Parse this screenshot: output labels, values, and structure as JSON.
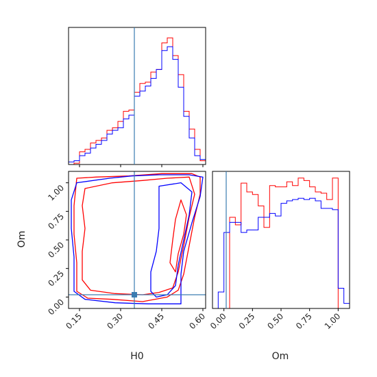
{
  "chart_data": {
    "type": "corner",
    "parameters": [
      "H0",
      "Om"
    ],
    "truth": {
      "H0": 0.35,
      "Om": 0.02
    },
    "colors": {
      "run_a": "#ff0000",
      "run_b": "#0000ff",
      "truth": "#3a7cb1",
      "axis": "#000000"
    },
    "panels": [
      {
        "type": "histogram",
        "param": "H0",
        "x_range": [
          0.11,
          0.61
        ],
        "x_ticks": [
          "0.15",
          "0.30",
          "0.45",
          "0.60"
        ],
        "bin_edges": [
          0.11,
          0.13,
          0.15,
          0.17,
          0.19,
          0.21,
          0.23,
          0.25,
          0.27,
          0.29,
          0.31,
          0.33,
          0.35,
          0.37,
          0.39,
          0.41,
          0.43,
          0.45,
          0.47,
          0.49,
          0.51,
          0.53,
          0.55,
          0.57,
          0.59,
          0.61
        ],
        "series": [
          {
            "color": "red",
            "values": [
              0,
              0.01,
              0.1,
              0.12,
              0.17,
              0.19,
              0.21,
              0.27,
              0.29,
              0.34,
              0.42,
              0.43,
              0.57,
              0.64,
              0.65,
              0.73,
              0.75,
              0.96,
              1.0,
              0.86,
              0.71,
              0.42,
              0.28,
              0.12,
              0.03
            ]
          },
          {
            "color": "blue",
            "values": [
              0.02,
              0.03,
              0.07,
              0.09,
              0.13,
              0.16,
              0.19,
              0.24,
              0.27,
              0.29,
              0.36,
              0.39,
              0.54,
              0.58,
              0.62,
              0.68,
              0.75,
              0.9,
              0.93,
              0.83,
              0.61,
              0.38,
              0.21,
              0.07,
              0.04
            ]
          }
        ]
      },
      {
        "type": "contour",
        "x_param": "H0",
        "y_param": "Om",
        "x_range": [
          0.11,
          0.61
        ],
        "y_range": [
          -0.1,
          1.1
        ],
        "x_ticks": [
          "0.15",
          "0.30",
          "0.45",
          "0.60"
        ],
        "y_ticks": [
          "0.00",
          "0.25",
          "0.50",
          "0.75",
          "1.00"
        ],
        "xlabel": "H0",
        "ylabel": "Om",
        "series": [
          {
            "color": "red",
            "levels": [
              [
                [
                  0.14,
                  1.04
                ],
                [
                  0.21,
                  1.05
                ],
                [
                  0.33,
                  1.06
                ],
                [
                  0.45,
                  1.08
                ],
                [
                  0.56,
                  1.08
                ],
                [
                  0.59,
                  1.05
                ],
                [
                  0.59,
                  0.9
                ],
                [
                  0.57,
                  0.7
                ],
                [
                  0.55,
                  0.45
                ],
                [
                  0.53,
                  0.2
                ],
                [
                  0.51,
                  0.06
                ],
                [
                  0.47,
                  0.0
                ],
                [
                  0.38,
                  -0.04
                ],
                [
                  0.27,
                  -0.02
                ],
                [
                  0.18,
                  -0.01
                ],
                [
                  0.14,
                  0.05
                ],
                [
                  0.14,
                  0.3
                ],
                [
                  0.13,
                  0.55
                ],
                [
                  0.13,
                  0.8
                ]
              ],
              [
                [
                  0.17,
                  0.95
                ],
                [
                  0.27,
                  1.0
                ],
                [
                  0.38,
                  1.02
                ],
                [
                  0.47,
                  1.04
                ],
                [
                  0.55,
                  1.05
                ],
                [
                  0.57,
                  0.9
                ],
                [
                  0.55,
                  0.7
                ],
                [
                  0.53,
                  0.45
                ],
                [
                  0.51,
                  0.22
                ],
                [
                  0.49,
                  0.08
                ],
                [
                  0.44,
                  0.04
                ],
                [
                  0.38,
                  0.02
                ],
                [
                  0.28,
                  0.03
                ],
                [
                  0.19,
                  0.06
                ],
                [
                  0.16,
                  0.15
                ],
                [
                  0.16,
                  0.4
                ],
                [
                  0.17,
                  0.6
                ],
                [
                  0.16,
                  0.8
                ]
              ],
              [
                [
                  0.52,
                  0.85
                ],
                [
                  0.54,
                  0.72
                ],
                [
                  0.53,
                  0.55
                ],
                [
                  0.51,
                  0.38
                ],
                [
                  0.5,
                  0.22
                ],
                [
                  0.48,
                  0.3
                ],
                [
                  0.49,
                  0.5
                ],
                [
                  0.5,
                  0.68
                ]
              ]
            ]
          },
          {
            "color": "blue",
            "levels": [
              [
                [
                  0.14,
                  1.0
                ],
                [
                  0.26,
                  1.04
                ],
                [
                  0.34,
                  1.06
                ],
                [
                  0.44,
                  1.07
                ],
                [
                  0.55,
                  1.07
                ],
                [
                  0.6,
                  1.05
                ],
                [
                  0.59,
                  0.88
                ],
                [
                  0.56,
                  0.65
                ],
                [
                  0.53,
                  0.4
                ],
                [
                  0.52,
                  0.2
                ],
                [
                  0.52,
                  -0.06
                ],
                [
                  0.4,
                  -0.06
                ],
                [
                  0.28,
                  -0.05
                ],
                [
                  0.17,
                  -0.02
                ],
                [
                  0.13,
                  0.05
                ],
                [
                  0.13,
                  0.35
                ],
                [
                  0.12,
                  0.6
                ],
                [
                  0.12,
                  0.85
                ]
              ],
              [
                [
                  0.44,
                  0.97
                ],
                [
                  0.52,
                  1.0
                ],
                [
                  0.56,
                  0.92
                ],
                [
                  0.55,
                  0.72
                ],
                [
                  0.53,
                  0.5
                ],
                [
                  0.51,
                  0.28
                ],
                [
                  0.5,
                  0.1
                ],
                [
                  0.47,
                  0.02
                ],
                [
                  0.43,
                  0.0
                ],
                [
                  0.41,
                  0.05
                ],
                [
                  0.41,
                  0.22
                ],
                [
                  0.43,
                  0.4
                ],
                [
                  0.44,
                  0.6
                ],
                [
                  0.44,
                  0.8
                ]
              ]
            ]
          }
        ]
      },
      {
        "type": "histogram",
        "param": "Om",
        "x_range": [
          -0.1,
          1.1
        ],
        "x_ticks": [
          "0.00",
          "0.25",
          "0.50",
          "0.75",
          "1.00"
        ],
        "xlabel": "Om",
        "bin_edges": [
          -0.1,
          -0.05,
          0.0,
          0.05,
          0.1,
          0.15,
          0.2,
          0.25,
          0.3,
          0.35,
          0.4,
          0.45,
          0.5,
          0.55,
          0.6,
          0.65,
          0.7,
          0.75,
          0.8,
          0.85,
          0.9,
          0.95,
          1.0,
          1.05,
          1.1
        ],
        "series": [
          {
            "color": "red",
            "values": [
              0,
              0,
              0,
              0.72,
              0.66,
              0.99,
              0.92,
              0.9,
              0.81,
              0.64,
              0.97,
              0.96,
              0.96,
              1.0,
              0.97,
              1.03,
              1.01,
              0.96,
              0.92,
              0.91,
              0.86,
              1.03,
              0,
              0
            ]
          },
          {
            "color": "blue",
            "values": [
              0,
              0.13,
              0.6,
              0.68,
              0.68,
              0.6,
              0.62,
              0.62,
              0.72,
              0.72,
              0.75,
              0.73,
              0.83,
              0.85,
              0.86,
              0.87,
              0.86,
              0.87,
              0.85,
              0.79,
              0.79,
              0.78,
              0.16,
              0.04
            ]
          }
        ]
      }
    ]
  }
}
